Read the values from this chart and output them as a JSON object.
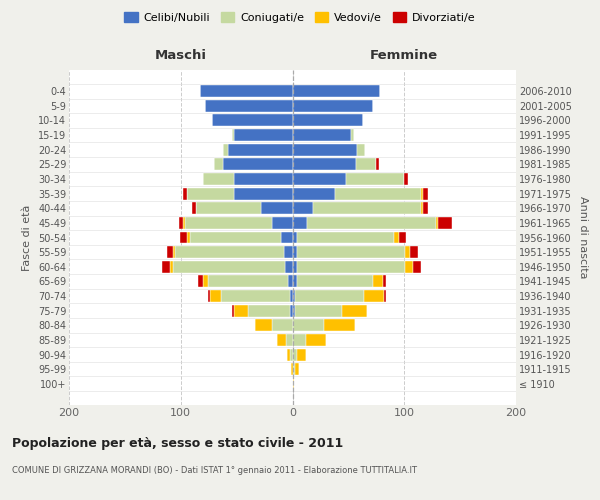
{
  "age_groups": [
    "100+",
    "95-99",
    "90-94",
    "85-89",
    "80-84",
    "75-79",
    "70-74",
    "65-69",
    "60-64",
    "55-59",
    "50-54",
    "45-49",
    "40-44",
    "35-39",
    "30-34",
    "25-29",
    "20-24",
    "15-19",
    "10-14",
    "5-9",
    "0-4"
  ],
  "birth_years": [
    "≤ 1910",
    "1911-1915",
    "1916-1920",
    "1921-1925",
    "1926-1930",
    "1931-1935",
    "1936-1940",
    "1941-1945",
    "1946-1950",
    "1951-1955",
    "1956-1960",
    "1961-1965",
    "1966-1970",
    "1971-1975",
    "1976-1980",
    "1981-1985",
    "1986-1990",
    "1991-1995",
    "1996-2000",
    "2001-2005",
    "2006-2010"
  ],
  "colors": {
    "celibe": "#4472c4",
    "coniugato": "#c5d9a0",
    "vedovo": "#ffc000",
    "divorziato": "#cc0000"
  },
  "maschi": {
    "celibe": [
      0,
      0,
      0,
      0,
      0,
      2,
      2,
      4,
      7,
      8,
      10,
      18,
      28,
      52,
      52,
      62,
      58,
      52,
      72,
      78,
      83
    ],
    "coniugato": [
      0,
      0,
      2,
      6,
      18,
      38,
      62,
      72,
      100,
      97,
      82,
      78,
      58,
      42,
      28,
      8,
      4,
      2,
      0,
      0,
      0
    ],
    "vedovo": [
      0,
      1,
      3,
      8,
      16,
      12,
      10,
      4,
      3,
      2,
      2,
      2,
      0,
      0,
      0,
      0,
      0,
      0,
      0,
      0,
      0
    ],
    "divorziato": [
      0,
      0,
      0,
      0,
      0,
      2,
      2,
      5,
      7,
      5,
      7,
      4,
      4,
      4,
      0,
      0,
      0,
      0,
      0,
      0,
      0
    ]
  },
  "femmine": {
    "celibe": [
      0,
      0,
      0,
      0,
      0,
      2,
      2,
      4,
      4,
      4,
      4,
      13,
      18,
      38,
      48,
      57,
      58,
      52,
      63,
      72,
      78
    ],
    "coniugato": [
      0,
      2,
      4,
      12,
      28,
      42,
      62,
      68,
      97,
      97,
      87,
      115,
      97,
      77,
      52,
      18,
      7,
      3,
      0,
      0,
      0
    ],
    "vedovo": [
      1,
      4,
      8,
      18,
      28,
      23,
      18,
      9,
      7,
      4,
      4,
      2,
      2,
      2,
      0,
      0,
      0,
      0,
      0,
      0,
      0
    ],
    "divorziato": [
      0,
      0,
      0,
      0,
      0,
      0,
      2,
      3,
      7,
      7,
      7,
      13,
      4,
      4,
      3,
      2,
      0,
      0,
      0,
      0,
      0
    ]
  },
  "xlim": 200,
  "title": "Popolazione per età, sesso e stato civile - 2011",
  "subtitle": "COMUNE DI GRIZZANA MORANDI (BO) - Dati ISTAT 1° gennaio 2011 - Elaborazione TUTTITALIA.IT",
  "ylabel_left": "Fasce di età",
  "ylabel_right": "Anni di nascita",
  "xlabel_maschi": "Maschi",
  "xlabel_femmine": "Femmine",
  "legend_labels": [
    "Celibi/Nubili",
    "Coniugati/e",
    "Vedovi/e",
    "Divorziati/e"
  ],
  "bg_color": "#f0f0eb",
  "plot_bg": "#ffffff"
}
